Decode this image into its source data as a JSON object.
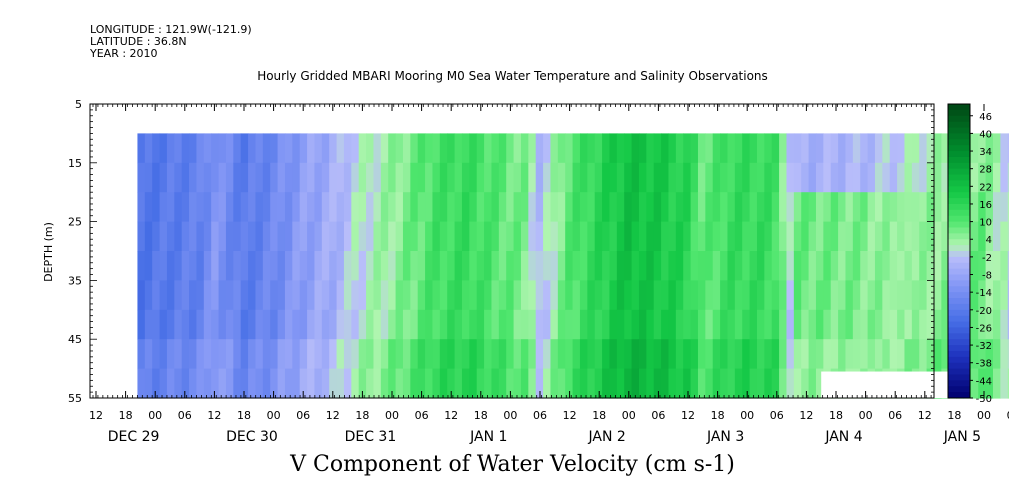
{
  "meta": {
    "longitude": "LONGITUDE : 121.9W(-121.9)",
    "latitude": "LATITUDE : 36.8N",
    "year": "YEAR : 2010"
  },
  "chart_data": {
    "type": "heatmap",
    "title": "Hourly Gridded MBARI Mooring M0 Sea Water Temperature and Salinity Observations",
    "xlabel": "V Component of Water Velocity (cm s-1)",
    "ylabel": "DEPTH (m)",
    "ylim": [
      5,
      55
    ],
    "y_inverted": true,
    "y_ticks": [
      5,
      15,
      25,
      35,
      45,
      55
    ],
    "x_hour_ticks": [
      "12",
      "18",
      "00",
      "06",
      "12",
      "18",
      "00",
      "06",
      "12",
      "18",
      "00",
      "06",
      "12",
      "18",
      "00",
      "06",
      "12",
      "18",
      "00",
      "06",
      "12",
      "18",
      "00",
      "06",
      "12",
      "18",
      "00",
      "06",
      "12",
      "18",
      "00",
      "06",
      "12"
    ],
    "x_day_labels": [
      {
        "label": "DEC 29",
        "tick": 1
      },
      {
        "label": "DEC 30",
        "tick": 5
      },
      {
        "label": "DEC 31",
        "tick": 9
      },
      {
        "label": "JAN  1",
        "tick": 13
      },
      {
        "label": "JAN  2",
        "tick": 17
      },
      {
        "label": "JAN  3",
        "tick": 21
      },
      {
        "label": "JAN  4",
        "tick": 25
      },
      {
        "label": "JAN  5",
        "tick": 29
      }
    ],
    "data_depth_range": [
      10,
      55
    ],
    "data_time_range_ticks": [
      1.4,
      31.3
    ],
    "colorbar": {
      "min": -50,
      "max": 50,
      "step": 2,
      "labels": [
        "46",
        "40",
        "34",
        "28",
        "22",
        "16",
        "10",
        "4",
        "-2",
        "-8",
        "-14",
        "-20",
        "-26",
        "-32",
        "-38",
        "-44",
        "-50"
      ]
    },
    "v_profile": [
      {
        "t": 1.4,
        "v": -22
      },
      {
        "t": 2.5,
        "v": -20
      },
      {
        "t": 3.5,
        "v": -18
      },
      {
        "t": 4.0,
        "v": -12
      },
      {
        "t": 5.0,
        "v": -20
      },
      {
        "t": 6.0,
        "v": -16
      },
      {
        "t": 7.0,
        "v": -10
      },
      {
        "t": 8.0,
        "v": -6
      },
      {
        "t": 8.8,
        "v": 0
      },
      {
        "t": 10.0,
        "v": 4
      },
      {
        "t": 11.5,
        "v": 12
      },
      {
        "t": 12.5,
        "v": 14
      },
      {
        "t": 13.5,
        "v": 10
      },
      {
        "t": 14.5,
        "v": 6
      },
      {
        "t": 15.0,
        "v": -4
      },
      {
        "t": 16.0,
        "v": 10
      },
      {
        "t": 17.0,
        "v": 16
      },
      {
        "t": 18.0,
        "v": 22
      },
      {
        "t": 19.0,
        "v": 20
      },
      {
        "t": 20.0,
        "v": 16
      },
      {
        "t": 20.5,
        "v": 8
      },
      {
        "t": 21.5,
        "v": 14
      },
      {
        "t": 22.5,
        "v": 14
      },
      {
        "t": 23.0,
        "v": 12
      },
      {
        "t": 23.6,
        "v": -6
      },
      {
        "t": 26.0,
        "v": -4
      },
      {
        "t": 28.0,
        "v": 2
      },
      {
        "t": 30.0,
        "v": 6
      },
      {
        "t": 31.3,
        "v": -4
      }
    ],
    "missing_blocks": [
      {
        "t0": 24.5,
        "t1": 28.9,
        "d0": 50.5,
        "d1": 55
      }
    ]
  }
}
